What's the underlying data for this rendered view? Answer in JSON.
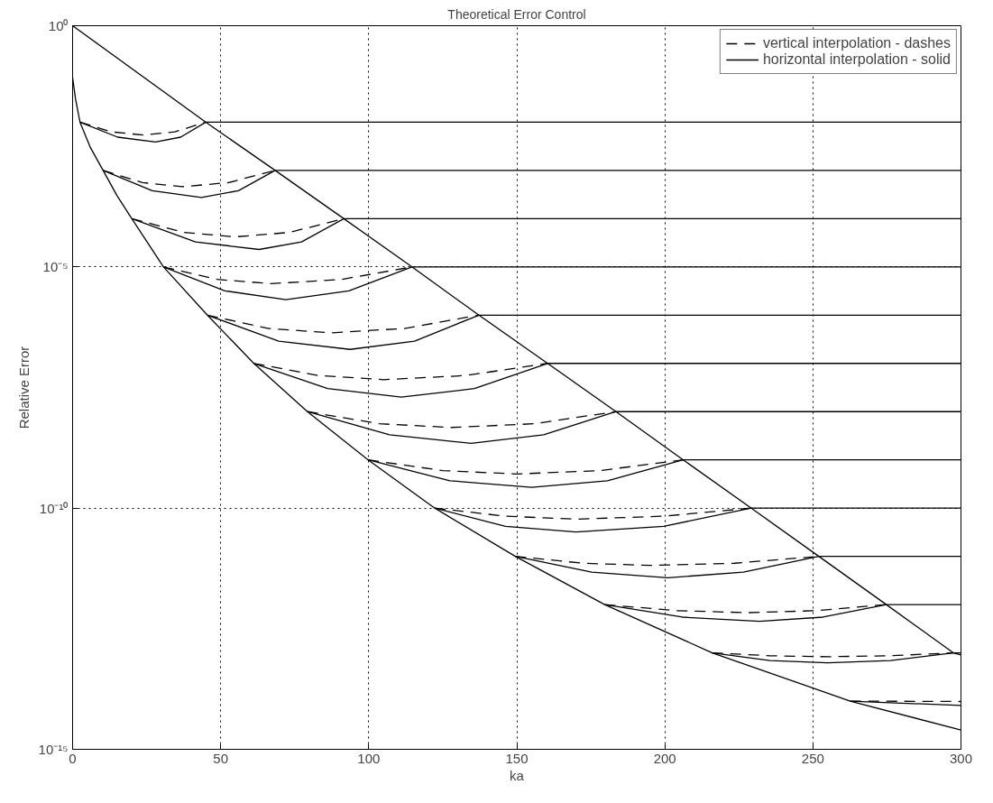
{
  "chart_data": {
    "type": "line",
    "title": "Theoretical Error Control",
    "xlabel": "ka",
    "ylabel": "Relative Error",
    "xlim": [
      0,
      300
    ],
    "xticks": [
      0,
      50,
      100,
      150,
      200,
      250,
      300
    ],
    "ylim": [
      1e-15,
      1
    ],
    "yticks": [
      {
        "value": 1e-15,
        "label": "10⁻¹⁵"
      },
      {
        "value": 1e-10,
        "label": "10⁻¹⁰"
      },
      {
        "value": 1e-05,
        "label": "10⁻⁵"
      },
      {
        "value": 1,
        "label": "10⁰"
      }
    ],
    "log": "y",
    "grid": true,
    "legend": "top right",
    "series": [
      {
        "name": "vertical interpolation - dashes",
        "color": "#000000",
        "line_style": "dashed",
        "x": [
          2.5,
          13.2,
          24,
          34.5,
          45.0
        ],
        "values": [
          0.01,
          0.0063,
          0.0054,
          0.0063,
          0.01
        ]
      },
      {
        "color": "#000000",
        "line_style": "dashed",
        "x": [
          10.3,
          23.6,
          37,
          52.7,
          68.4
        ],
        "values": [
          0.001,
          0.00056,
          0.00046,
          0.00056,
          0.001
        ]
      },
      {
        "color": "#000000",
        "line_style": "dashed",
        "x": [
          20,
          37.5,
          55,
          73.3,
          91.6
        ],
        "values": [
          0.0001,
          5.2e-05,
          4.2e-05,
          5.2e-05,
          0.0001
        ]
      },
      {
        "color": "#000000",
        "line_style": "dashed",
        "x": [
          30.7,
          48.8,
          67,
          90.8,
          114.6
        ],
        "values": [
          1e-05,
          5.5e-06,
          4.5e-06,
          5.5e-06,
          1e-05
        ]
      },
      {
        "color": "#000000",
        "line_style": "dashed",
        "x": [
          45.5,
          66.2,
          87,
          112.1,
          137.2
        ],
        "values": [
          1e-06,
          5.3e-07,
          4.3e-07,
          5.3e-07,
          1e-06
        ]
      },
      {
        "color": "#000000",
        "line_style": "dashed",
        "x": [
          61.2,
          83.1,
          105,
          132.7,
          160.4
        ],
        "values": [
          1e-07,
          5.6e-08,
          4.6e-08,
          5.6e-08,
          1e-07
        ]
      },
      {
        "color": "#000000",
        "line_style": "dashed",
        "x": [
          79.3,
          103.6,
          128,
          155.7,
          183.5
        ],
        "values": [
          1e-08,
          5.6e-09,
          4.7e-09,
          5.6e-09,
          1e-08
        ]
      },
      {
        "color": "#000000",
        "line_style": "dashed",
        "x": [
          99.8,
          124.9,
          150,
          178.1,
          206.2
        ],
        "values": [
          1e-09,
          6e-10,
          5.1e-10,
          6e-10,
          1e-09
        ]
      },
      {
        "color": "#000000",
        "line_style": "dashed",
        "x": [
          122.3,
          146.1,
          170,
          199.6,
          229.2
        ],
        "values": [
          1e-10,
          6.8e-11,
          5.9e-11,
          6.8e-11,
          1e-10
        ]
      },
      {
        "color": "#000000",
        "line_style": "dashed",
        "x": [
          149.5,
          172.2,
          195,
          223.5,
          252
        ],
        "values": [
          1e-11,
          7.2e-12,
          6.5e-12,
          7.2e-12,
          1e-11
        ]
      },
      {
        "color": "#000000",
        "line_style": "dashed",
        "x": [
          179.7,
          203.8,
          228,
          251.4,
          274.8
        ],
        "values": [
          1e-12,
          7.5e-13,
          6.8e-13,
          7.5e-13,
          1e-12
        ]
      },
      {
        "color": "#000000",
        "line_style": "dashed",
        "x": [
          216,
          235.5,
          255,
          276.2,
          297.4
        ],
        "values": [
          1e-13,
          8.7e-14,
          8.3e-14,
          8.7e-14,
          1e-13
        ]
      },
      {
        "color": "#000000",
        "line_style": "dashed",
        "x": [
          262.6,
          300
        ],
        "values": [
          1e-14,
          9.8e-15
        ]
      },
      {
        "name": "horizontal interpolation - solid",
        "color": "#000000",
        "line_style": "solid",
        "x": [
          2.5,
          15.2,
          28,
          36.5,
          45.0,
          300
        ],
        "values": [
          0.01,
          0.0049,
          0.0039,
          0.0049,
          0.01,
          0.01
        ]
      },
      {
        "color": "#000000",
        "line_style": "solid",
        "x": [
          10.3,
          26.9,
          43.5,
          56.0,
          68.4,
          300
        ],
        "values": [
          0.001,
          0.00038,
          0.000275,
          0.00038,
          0.001,
          0.001
        ]
      },
      {
        "color": "#000000",
        "line_style": "solid",
        "x": [
          20,
          41.5,
          63,
          77.3,
          91.6,
          300
        ],
        "values": [
          0.0001,
          3.3e-05,
          2.3e-05,
          3.3e-05,
          0.0001,
          0.0001
        ]
      },
      {
        "color": "#000000",
        "line_style": "solid",
        "x": [
          30.7,
          51.4,
          72,
          93.3,
          114.6,
          300
        ],
        "values": [
          1e-05,
          3.2e-06,
          2.1e-06,
          3.2e-06,
          1e-05,
          1e-05
        ]
      },
      {
        "color": "#000000",
        "line_style": "solid",
        "x": [
          45.5,
          69.6,
          93.7,
          115.5,
          137.2,
          300
        ],
        "values": [
          1e-06,
          2.9e-07,
          1.95e-07,
          2.9e-07,
          1e-06,
          1e-06
        ]
      },
      {
        "color": "#000000",
        "line_style": "solid",
        "x": [
          61.2,
          86.1,
          111,
          135.7,
          160.4,
          300
        ],
        "values": [
          1e-07,
          3e-08,
          2e-08,
          3e-08,
          1e-07,
          1e-07
        ]
      },
      {
        "color": "#000000",
        "line_style": "solid",
        "x": [
          79.3,
          107,
          134.6,
          159.1,
          183.5,
          300
        ],
        "values": [
          1e-08,
          3.3e-09,
          2.2e-09,
          3.3e-09,
          1e-08,
          1e-08
        ]
      },
      {
        "color": "#000000",
        "line_style": "solid",
        "x": [
          99.8,
          127.4,
          155,
          180.6,
          206.2,
          300
        ],
        "values": [
          1e-09,
          3.7e-10,
          2.7e-10,
          3.7e-10,
          1e-09,
          1e-09
        ]
      },
      {
        "color": "#000000",
        "line_style": "solid",
        "x": [
          122.3,
          146.2,
          170,
          199.6,
          229.2,
          300
        ],
        "values": [
          1e-10,
          4.2e-11,
          3.2e-11,
          4.2e-11,
          1e-10,
          1e-10
        ]
      },
      {
        "color": "#000000",
        "line_style": "solid",
        "x": [
          149.5,
          175.3,
          201,
          226.5,
          252,
          300
        ],
        "values": [
          1e-11,
          4.7e-12,
          3.6e-12,
          4.7e-12,
          1e-11,
          1e-11
        ]
      },
      {
        "color": "#000000",
        "line_style": "solid",
        "x": [
          179.7,
          205.9,
          232,
          253.4,
          274.8,
          300
        ],
        "values": [
          1e-12,
          5.5e-13,
          4.5e-13,
          5.5e-13,
          1e-12,
          1e-12
        ]
      },
      {
        "color": "#000000",
        "line_style": "solid",
        "x": [
          216,
          235.5,
          255,
          276.2,
          297.4,
          300
        ],
        "values": [
          1e-13,
          6.9e-14,
          6.2e-14,
          6.9e-14,
          1e-13,
          1e-13
        ]
      },
      {
        "color": "#000000",
        "line_style": "solid",
        "x": [
          262.6,
          300
        ],
        "values": [
          1e-14,
          8.1e-15
        ]
      },
      {
        "color": "#000000",
        "line_style": "solid",
        "x": [
          0,
          45.0,
          68.4,
          91.6,
          114.6,
          137.2,
          160.4,
          183.5,
          206.2,
          229.2,
          252,
          274.8,
          297.4,
          300
        ],
        "values": [
          1,
          0.01,
          0.001,
          0.0001,
          1e-05,
          1e-06,
          1e-07,
          1e-08,
          1e-09,
          1e-10,
          1e-11,
          1e-12,
          1e-13,
          9.1e-14
        ]
      },
      {
        "color": "#000000",
        "line_style": "solid",
        "x": [
          0,
          1,
          2.5,
          6,
          10.3,
          15,
          20,
          30.7,
          45.5,
          61.2,
          79.3,
          99.8,
          122.3,
          149.5,
          179.7,
          216,
          262.6,
          300
        ],
        "values": [
          0.085,
          0.03,
          0.01,
          0.003,
          0.001,
          0.0003,
          0.0001,
          1e-05,
          1e-06,
          1e-07,
          1e-08,
          1e-09,
          1e-10,
          1e-11,
          1e-12,
          1e-13,
          1e-14,
          2.5e-15
        ]
      }
    ]
  }
}
